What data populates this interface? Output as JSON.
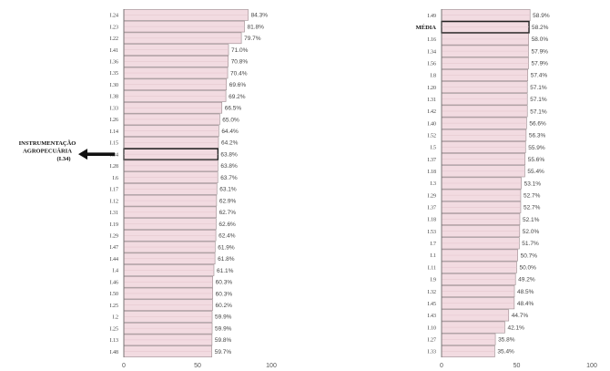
{
  "chart_data": [
    {
      "type": "bar",
      "orientation": "horizontal",
      "categories": [
        "I.24",
        "I.23",
        "I.22",
        "I.41",
        "I.36",
        "I.35",
        "I.30",
        "I.38",
        "I.33",
        "I.26",
        "I.14",
        "I.15",
        "I.34",
        "I.28",
        "I.6",
        "I.17",
        "I.12",
        "I.31",
        "I.19",
        "I.29",
        "I.47",
        "I.44",
        "I.4",
        "I.46",
        "I.50",
        "I.25",
        "I.2",
        "I.25",
        "I.13",
        "I.48"
      ],
      "values": [
        84.3,
        81.8,
        79.7,
        71.0,
        70.8,
        70.4,
        69.6,
        69.2,
        66.5,
        65.0,
        64.4,
        64.2,
        63.8,
        63.8,
        63.7,
        63.1,
        62.9,
        62.7,
        62.6,
        62.4,
        61.9,
        61.8,
        61.1,
        60.3,
        60.3,
        60.2,
        59.9,
        59.9,
        59.8,
        59.7
      ],
      "value_labels": [
        "84.3%",
        "81.8%",
        "79.7%",
        "71.0%",
        "70.8%",
        "70.4%",
        "69.6%",
        "69.2%",
        "66.5%",
        "65.0%",
        "64.4%",
        "64.2%",
        "63.8%",
        "63.8%",
        "63.7%",
        "63.1%",
        "62.9%",
        "62.7%",
        "62.6%",
        "62.4%",
        "61.9%",
        "61.8%",
        "61.1%",
        "60.3%",
        "60.3%",
        "60.2%",
        "59.9%",
        "59.9%",
        "59.8%",
        "59.7%"
      ],
      "highlight_category_index": 12,
      "annotation": [
        "INSTRUMENTAÇÃO",
        "AGROPECUÁRIA",
        "(I.34)"
      ],
      "xlim": [
        0,
        100
      ],
      "xticks": [
        "0",
        "50",
        "100"
      ],
      "bar_color": "#f2dbe1",
      "bar_border": "#9a8a8e",
      "title": "",
      "xlabel": "",
      "ylabel": ""
    },
    {
      "type": "bar",
      "orientation": "horizontal",
      "categories": [
        "I.49",
        "MÉDIA",
        "I.16",
        "I.34",
        "I.56",
        "I.8",
        "I.20",
        "I.31",
        "I.42",
        "I.40",
        "I.52",
        "I.5",
        "I.37",
        "I.18",
        "I.3",
        "I.29",
        "I.37",
        "I.18",
        "I.53",
        "I.7",
        "I.1",
        "I.11",
        "I.9",
        "I.32",
        "I.45",
        "I.43",
        "I.10",
        "I.27",
        "I.33"
      ],
      "values": [
        58.9,
        58.2,
        58.0,
        57.9,
        57.9,
        57.4,
        57.1,
        57.1,
        57.1,
        56.6,
        56.3,
        55.9,
        55.6,
        55.4,
        53.1,
        52.7,
        52.7,
        52.1,
        52.0,
        51.7,
        50.7,
        50.0,
        49.2,
        48.5,
        48.4,
        44.7,
        42.1,
        35.8,
        35.4
      ],
      "value_labels": [
        "58.9%",
        "58.2%",
        "58.0%",
        "57.9%",
        "57.9%",
        "57.4%",
        "57.1%",
        "57.1%",
        "57.1%",
        "56.6%",
        "56.3%",
        "55.9%",
        "55.6%",
        "55.4%",
        "53.1%",
        "52.7%",
        "52.7%",
        "52.1%",
        "52.0%",
        "51.7%",
        "50.7%",
        "50.0%",
        "49.2%",
        "48.5%",
        "48.4%",
        "44.7%",
        "42.1%",
        "35.8%",
        "35.4%"
      ],
      "highlight_category_index": 1,
      "xlim": [
        0,
        100
      ],
      "xticks": [
        "0",
        "50",
        "100"
      ],
      "bar_color": "#f2dbe1",
      "bar_border": "#9a8a8e",
      "title": "",
      "xlabel": "",
      "ylabel": ""
    }
  ]
}
